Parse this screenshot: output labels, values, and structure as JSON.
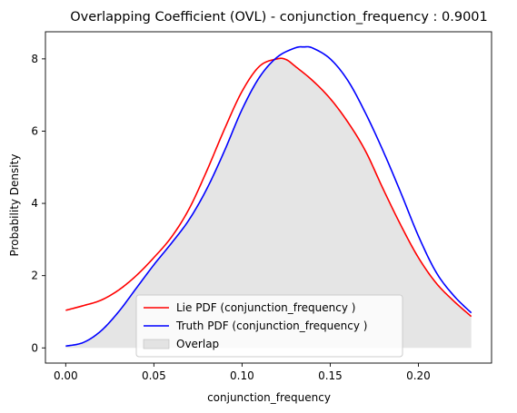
{
  "chart_data": {
    "type": "line",
    "title": "Overlapping Coefficient (OVL) - conjunction_frequency : 0.9001",
    "xlabel": "conjunction_frequency",
    "ylabel": "Probability Density",
    "xlim": [
      -0.0115,
      0.2415
    ],
    "ylim": [
      -0.42,
      8.75
    ],
    "xticks": [
      0.0,
      0.05,
      0.1,
      0.15,
      0.2
    ],
    "xtick_labels": [
      "0.00",
      "0.05",
      "0.10",
      "0.15",
      "0.20"
    ],
    "yticks": [
      0,
      2,
      4,
      6,
      8
    ],
    "ytick_labels": [
      "0",
      "2",
      "4",
      "6",
      "8"
    ],
    "grid": false,
    "legend_position": "lower-center",
    "series": [
      {
        "name": "Lie PDF (conjunction_frequency )",
        "color": "#ff0000",
        "x": [
          0.0,
          0.01,
          0.02,
          0.03,
          0.04,
          0.05,
          0.06,
          0.07,
          0.08,
          0.09,
          0.1,
          0.11,
          0.12,
          0.125,
          0.13,
          0.14,
          0.15,
          0.16,
          0.17,
          0.18,
          0.19,
          0.2,
          0.21,
          0.22,
          0.23
        ],
        "y": [
          1.04,
          1.17,
          1.32,
          1.6,
          2.0,
          2.5,
          3.07,
          3.85,
          4.9,
          6.05,
          7.1,
          7.8,
          8.0,
          7.98,
          7.8,
          7.4,
          6.9,
          6.25,
          5.45,
          4.4,
          3.4,
          2.5,
          1.8,
          1.3,
          0.87
        ]
      },
      {
        "name": "Truth PDF (conjunction_frequency )",
        "color": "#0000ff",
        "x": [
          0.0,
          0.01,
          0.02,
          0.03,
          0.04,
          0.05,
          0.06,
          0.07,
          0.08,
          0.09,
          0.1,
          0.11,
          0.12,
          0.13,
          0.135,
          0.14,
          0.15,
          0.16,
          0.17,
          0.18,
          0.19,
          0.2,
          0.21,
          0.22,
          0.23
        ],
        "y": [
          0.05,
          0.15,
          0.47,
          1.0,
          1.65,
          2.3,
          2.9,
          3.55,
          4.4,
          5.45,
          6.6,
          7.5,
          8.05,
          8.3,
          8.33,
          8.3,
          8.0,
          7.4,
          6.5,
          5.45,
          4.3,
          3.1,
          2.1,
          1.45,
          0.97
        ]
      }
    ],
    "overlap": {
      "name": "Overlap",
      "color": "#d3d3d3"
    }
  }
}
